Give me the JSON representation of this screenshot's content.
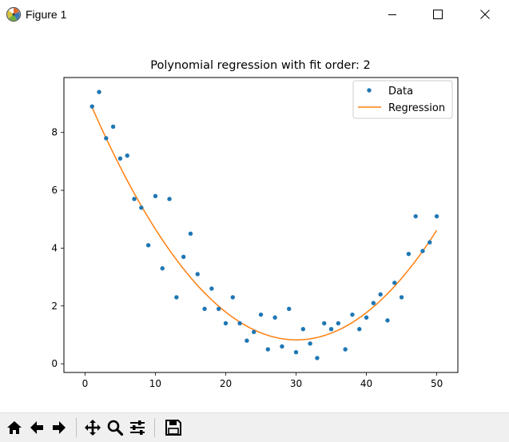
{
  "window": {
    "title": "Figure 1",
    "icons": {
      "app": "figure-app-icon",
      "minimize": "minimize-icon",
      "maximize": "maximize-icon",
      "close": "close-icon"
    }
  },
  "toolbar": {
    "buttons": [
      {
        "name": "home-button",
        "icon": "home-icon"
      },
      {
        "name": "back-button",
        "icon": "arrow-left-icon"
      },
      {
        "name": "forward-button",
        "icon": "arrow-right-icon"
      },
      {
        "name": "pan-button",
        "icon": "move-icon"
      },
      {
        "name": "zoom-button",
        "icon": "magnifier-icon"
      },
      {
        "name": "configure-subplots-button",
        "icon": "sliders-icon"
      },
      {
        "name": "save-button",
        "icon": "floppy-disk-icon"
      }
    ]
  },
  "chart_data": {
    "type": "scatter",
    "title": "Polynomial regression with fit order: 2",
    "xlabel": "",
    "ylabel": "",
    "xlim": [
      -3,
      53
    ],
    "ylim": [
      -0.3,
      9.9
    ],
    "xticks": [
      0,
      10,
      20,
      30,
      40,
      50
    ],
    "yticks": [
      0,
      2,
      4,
      6,
      8
    ],
    "grid": false,
    "legend": {
      "location": "upper right",
      "entries": [
        "Data",
        "Regression"
      ]
    },
    "colors": {
      "data": "#1f77b4",
      "regression": "#ff7f0e"
    },
    "series": [
      {
        "name": "Data",
        "kind": "scatter",
        "x": [
          1,
          2,
          3,
          4,
          5,
          6,
          7,
          8,
          9,
          10,
          11,
          12,
          13,
          14,
          15,
          16,
          17,
          18,
          19,
          20,
          21,
          22,
          23,
          24,
          25,
          26,
          27,
          28,
          29,
          30,
          31,
          32,
          33,
          34,
          35,
          36,
          37,
          38,
          39,
          40,
          41,
          42,
          43,
          44,
          45,
          46,
          47,
          48,
          49,
          50
        ],
        "y": [
          8.9,
          9.4,
          7.8,
          8.2,
          7.1,
          7.2,
          5.7,
          5.4,
          4.1,
          5.8,
          3.3,
          5.7,
          2.3,
          3.7,
          4.5,
          3.1,
          1.9,
          2.6,
          1.9,
          1.4,
          2.3,
          1.4,
          0.8,
          1.1,
          1.7,
          0.5,
          1.6,
          0.6,
          1.9,
          0.4,
          1.2,
          0.7,
          0.2,
          1.4,
          1.2,
          1.4,
          0.5,
          1.7,
          1.2,
          1.6,
          2.1,
          2.4,
          1.5,
          2.8,
          2.3,
          3.8,
          5.1,
          3.9,
          4.2,
          5.1
        ]
      },
      {
        "name": "Regression",
        "kind": "line",
        "coefficients": {
          "a": 0.00953,
          "b": -0.5728,
          "c": 9.434
        },
        "x_range": [
          1,
          50
        ]
      }
    ]
  }
}
